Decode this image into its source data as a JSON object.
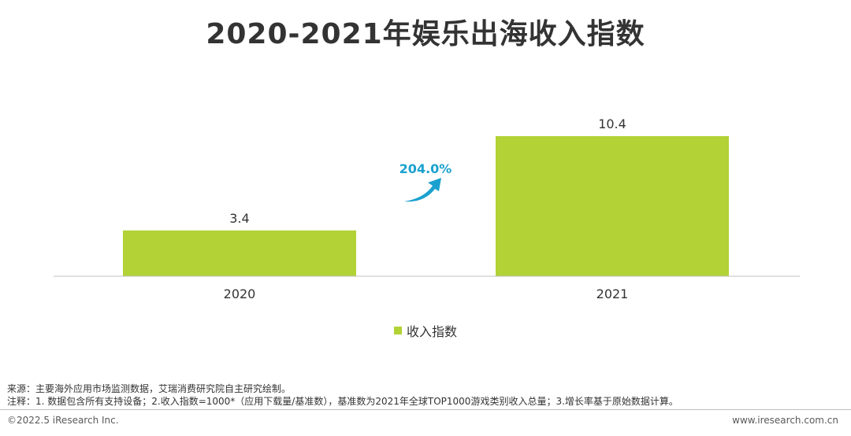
{
  "chart_data": {
    "type": "bar",
    "title": "2020-2021年娱乐出海收入指数",
    "categories": [
      "2020",
      "2021"
    ],
    "series": [
      {
        "name": "收入指数",
        "values": [
          3.4,
          10.4
        ],
        "color": "#b2d235"
      }
    ],
    "growth_label": "204.0%",
    "growth_color": "#1ba1cf",
    "ylim": [
      0,
      10.4
    ],
    "grid": false,
    "legend_position": "bottom"
  },
  "notes": {
    "source": "来源：主要海外应用市场监测数据，艾瑞消费研究院自主研究绘制。",
    "remark": "注释：1. 数据包含所有支持设备；2.收入指数=1000*（应用下载量/基准数），基准数为2021年全球TOP1000游戏类别收入总量；3.增长率基于原始数据计算。"
  },
  "footer": {
    "copyright": "©2022.5 iResearch Inc.",
    "website": "www.iresearch.com.cn"
  }
}
